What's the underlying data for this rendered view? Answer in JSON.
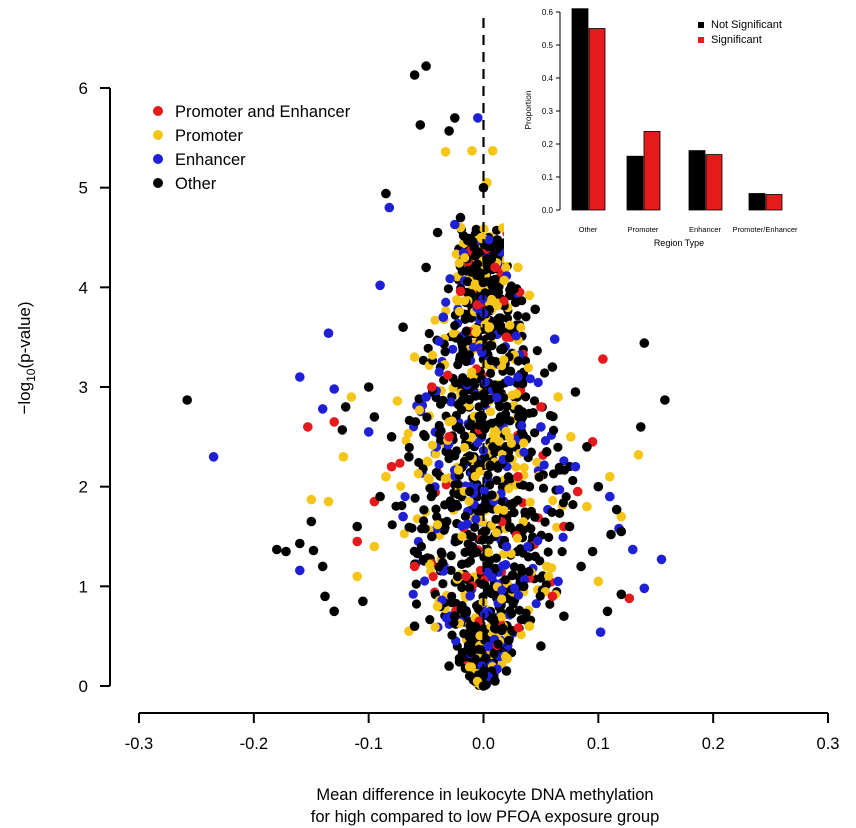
{
  "chart_data": [
    {
      "type": "scatter",
      "title": "",
      "xlabel_line1": "Mean difference in leukocyte DNA methylation",
      "xlabel_line2": "for high compared to low PFOA exposure group",
      "ylabel_main": "−log",
      "ylabel_sub": "10",
      "ylabel_tail": "(p-value)",
      "xlim": [
        -0.3,
        0.3
      ],
      "ylim": [
        0,
        6
      ],
      "xticks": [
        "-0.3",
        "-0.2",
        "-0.1",
        "0.0",
        "0.1",
        "0.2",
        "0.3"
      ],
      "yticks": [
        "0",
        "1",
        "2",
        "3",
        "4",
        "5",
        "6"
      ],
      "reference_line_x": 0.0,
      "legend_position": "top-left",
      "colors": {
        "Promoter and Enhancer": "#e41a1c",
        "Promoter": "#f5c518",
        "Enhancer": "#1f1fd6",
        "Other": "#000000"
      },
      "series": [
        {
          "name": "Promoter and Enhancer",
          "color": "#e41a1c",
          "points": [
            [
              -0.153,
              2.6
            ],
            [
              -0.13,
              2.65
            ],
            [
              0.104,
              3.28
            ],
            [
              0.127,
              0.88
            ],
            [
              -0.02,
              3.96
            ],
            [
              0.03,
              2.1
            ],
            [
              -0.045,
              3.0
            ],
            [
              0.07,
              1.6
            ],
            [
              -0.08,
              2.2
            ],
            [
              0.05,
              2.8
            ],
            [
              -0.11,
              1.45
            ],
            [
              0.082,
              1.95
            ],
            [
              -0.06,
              1.2
            ],
            [
              0.02,
              3.5
            ],
            [
              -0.03,
              2.5
            ],
            [
              0.095,
              2.45
            ],
            [
              -0.095,
              1.85
            ],
            [
              0.01,
              4.2
            ],
            [
              0.06,
              0.9
            ],
            [
              -0.015,
              1.1
            ]
          ]
        },
        {
          "name": "Promoter",
          "color": "#f5c518",
          "points": [
            [
              -0.15,
              1.87
            ],
            [
              -0.135,
              1.85
            ],
            [
              -0.115,
              2.9
            ],
            [
              0.135,
              2.32
            ],
            [
              0.11,
              2.1
            ],
            [
              -0.01,
              5.37
            ],
            [
              0.008,
              5.37
            ],
            [
              -0.033,
              5.36
            ],
            [
              0.04,
              3.92
            ],
            [
              0.018,
              4.07
            ],
            [
              -0.075,
              2.86
            ],
            [
              0.09,
              1.8
            ],
            [
              -0.095,
              1.4
            ],
            [
              0.076,
              2.5
            ],
            [
              -0.06,
              3.3
            ],
            [
              0.055,
              1.2
            ],
            [
              -0.04,
              0.8
            ],
            [
              0.03,
              4.2
            ],
            [
              -0.02,
              4.6
            ],
            [
              0.003,
              5.05
            ],
            [
              0.1,
              1.05
            ],
            [
              -0.11,
              1.1
            ],
            [
              0.065,
              2.9
            ],
            [
              -0.085,
              2.1
            ],
            [
              0.04,
              0.6
            ],
            [
              -0.065,
              0.55
            ],
            [
              0.12,
              1.7
            ],
            [
              -0.122,
              2.3
            ]
          ]
        },
        {
          "name": "Enhancer",
          "color": "#1f1fd6",
          "points": [
            [
              -0.235,
              2.3
            ],
            [
              -0.16,
              1.16
            ],
            [
              -0.135,
              3.54
            ],
            [
              -0.16,
              3.1
            ],
            [
              -0.14,
              2.78
            ],
            [
              -0.13,
              2.98
            ],
            [
              -0.082,
              4.8
            ],
            [
              -0.025,
              4.63
            ],
            [
              -0.005,
              5.7
            ],
            [
              0.062,
              3.48
            ],
            [
              0.118,
              1.58
            ],
            [
              0.13,
              1.37
            ],
            [
              0.155,
              1.27
            ],
            [
              0.14,
              0.98
            ],
            [
              0.102,
              0.54
            ],
            [
              -0.09,
              4.02
            ],
            [
              0.05,
              2.6
            ],
            [
              -0.07,
              1.7
            ],
            [
              0.08,
              2.2
            ],
            [
              0.03,
              3.1
            ],
            [
              -0.05,
              2.9
            ],
            [
              0.11,
              1.9
            ],
            [
              -0.1,
              2.55
            ],
            [
              0.02,
              1.4
            ],
            [
              -0.035,
              3.7
            ],
            [
              0.065,
              1.05
            ]
          ]
        },
        {
          "name": "Other",
          "color": "#000000",
          "points": [
            [
              -0.258,
              2.87
            ],
            [
              -0.18,
              1.37
            ],
            [
              -0.172,
              1.35
            ],
            [
              -0.16,
              1.43
            ],
            [
              -0.15,
              1.65
            ],
            [
              -0.148,
              1.36
            ],
            [
              -0.14,
              1.2
            ],
            [
              -0.138,
              0.9
            ],
            [
              -0.123,
              2.57
            ],
            [
              -0.12,
              2.8
            ],
            [
              -0.06,
              6.13
            ],
            [
              -0.05,
              6.22
            ],
            [
              -0.055,
              5.63
            ],
            [
              -0.03,
              5.57
            ],
            [
              -0.025,
              5.7
            ],
            [
              0.158,
              2.87
            ],
            [
              0.14,
              3.44
            ],
            [
              0.137,
              2.6
            ],
            [
              0.116,
              1.77
            ],
            [
              0.12,
              1.55
            ],
            [
              0.111,
              1.52
            ],
            [
              0.12,
              0.92
            ],
            [
              -0.085,
              4.94
            ],
            [
              -0.04,
              4.55
            ],
            [
              0.0,
              5.0
            ],
            [
              -0.02,
              4.7
            ],
            [
              0.025,
              4.5
            ],
            [
              0.045,
              3.78
            ],
            [
              0.08,
              2.95
            ],
            [
              -0.1,
              3.0
            ],
            [
              -0.08,
              2.5
            ],
            [
              -0.09,
              1.9
            ],
            [
              0.09,
              2.4
            ],
            [
              0.085,
              1.2
            ],
            [
              -0.06,
              0.6
            ],
            [
              0.05,
              0.4
            ],
            [
              -0.03,
              0.2
            ],
            [
              0.02,
              0.15
            ],
            [
              0.01,
              0.05
            ],
            [
              0.0,
              0.0
            ],
            [
              -0.012,
              0.1
            ],
            [
              0.04,
              2.0
            ],
            [
              -0.045,
              1.5
            ],
            [
              0.06,
              3.2
            ],
            [
              -0.07,
              3.6
            ],
            [
              0.015,
              2.7
            ],
            [
              -0.015,
              3.3
            ],
            [
              0.035,
              1.0
            ],
            [
              -0.025,
              0.7
            ],
            [
              0.075,
              1.6
            ],
            [
              -0.11,
              1.6
            ],
            [
              0.1,
              2.0
            ],
            [
              -0.095,
              2.7
            ],
            [
              0.07,
              0.7
            ],
            [
              -0.05,
              4.2
            ],
            [
              0.028,
              3.85
            ],
            [
              -0.008,
              4.4
            ],
            [
              0.055,
              2.35
            ],
            [
              -0.065,
              2.3
            ],
            [
              0.045,
              1.3
            ],
            [
              0.095,
              1.35
            ],
            [
              -0.105,
              0.85
            ],
            [
              0.108,
              0.75
            ],
            [
              -0.13,
              0.75
            ]
          ]
        }
      ],
      "dense_cloud": {
        "description_hidden": true,
        "max_abs_x_at_y0": 0.005,
        "max_abs_x_at_y1": 0.075,
        "max_abs_x_at_y2": 0.085,
        "max_abs_x_at_y3": 0.065,
        "max_abs_x_at_y4": 0.038,
        "max_abs_x_at_y5": 0.01
      }
    },
    {
      "type": "bar",
      "title": "",
      "xlabel": "Region Type",
      "ylabel": "Proportion",
      "ylim": [
        0,
        0.6
      ],
      "yticks": [
        "0.0",
        "0.1",
        "0.2",
        "0.3",
        "0.4",
        "0.5",
        "0.6"
      ],
      "categories": [
        "Other",
        "Promoter",
        "Enhancer",
        "Promoter/Enhancer"
      ],
      "legend_position": "top-right",
      "series": [
        {
          "name": "Not Significant",
          "color": "#000000",
          "values": [
            0.61,
            0.163,
            0.18,
            0.05
          ]
        },
        {
          "name": "Significant",
          "color": "#e41a1c",
          "values": [
            0.55,
            0.238,
            0.168,
            0.047
          ]
        }
      ]
    }
  ]
}
